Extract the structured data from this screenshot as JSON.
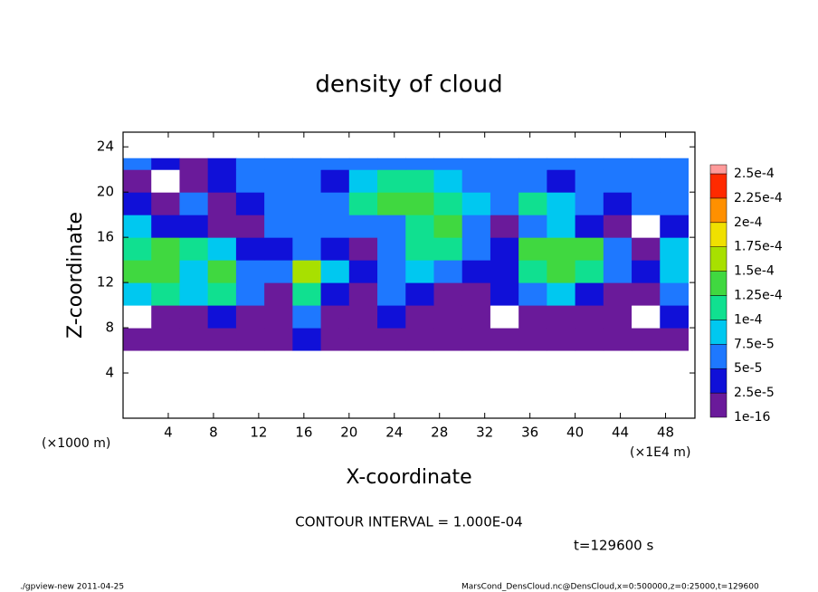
{
  "chart_data": {
    "type": "heatmap",
    "title": "density of cloud",
    "x_label": "X-coordinate",
    "y_label": "Z-coordinate",
    "x_unit": "(×1E4 m)",
    "y_unit": "(×1000 m)",
    "annotation": "CONTOUR INTERVAL = 1.000E-04",
    "time_label": "t=129600 s",
    "footer_left": "./gpview-new  2011-04-25",
    "footer_right": "MarsCond_DensCloud.nc@DensCloud,x=0:500000,z=0:25000,t=129600",
    "xlim": [
      0,
      50.6
    ],
    "ylim": [
      0,
      25.3
    ],
    "xticks": [
      4,
      8,
      12,
      16,
      20,
      24,
      28,
      32,
      36,
      40,
      44,
      48
    ],
    "yticks": [
      4,
      8,
      12,
      16,
      20,
      24
    ],
    "x": [
      0,
      2.5,
      5,
      7.5,
      10,
      12.5,
      15,
      17.5,
      20,
      22.5,
      25,
      27.5,
      30,
      32.5,
      35,
      37.5,
      40,
      42.5,
      45,
      47.5,
      50
    ],
    "y": [
      6,
      8,
      10,
      12,
      14,
      16,
      18,
      20,
      22,
      23
    ],
    "z": [
      [
        1e-05,
        1e-05,
        1e-05,
        1e-05,
        1e-05,
        1e-05,
        3e-05,
        1e-05,
        1e-05,
        1e-05,
        1e-05,
        1e-05,
        1e-05,
        1e-05,
        1e-05,
        1e-05,
        1e-05,
        1e-05,
        1e-05,
        1e-05
      ],
      [
        0,
        1e-05,
        1e-05,
        3e-05,
        1e-05,
        1e-05,
        6e-05,
        1e-05,
        1e-05,
        3e-05,
        1e-05,
        1e-05,
        1e-05,
        0,
        1e-05,
        1e-05,
        1e-05,
        1e-05,
        0,
        3e-05
      ],
      [
        8e-05,
        0.00011,
        8e-05,
        0.00011,
        6e-05,
        1e-05,
        0.00011,
        3e-05,
        1e-05,
        6e-05,
        3e-05,
        1e-05,
        1e-05,
        3e-05,
        6e-05,
        8e-05,
        3e-05,
        1e-05,
        1e-05,
        6e-05
      ],
      [
        0.00013,
        0.00013,
        8e-05,
        0.00013,
        6e-05,
        6e-05,
        0.00015,
        8e-05,
        3e-05,
        6e-05,
        8e-05,
        6e-05,
        3e-05,
        3e-05,
        0.00011,
        0.00013,
        0.00011,
        6e-05,
        3e-05,
        8e-05
      ],
      [
        0.00011,
        0.00013,
        0.00011,
        8e-05,
        3e-05,
        3e-05,
        6e-05,
        3e-05,
        1e-05,
        6e-05,
        0.00011,
        0.00011,
        6e-05,
        3e-05,
        0.00013,
        0.00013,
        0.00013,
        6e-05,
        1e-05,
        8e-05
      ],
      [
        8e-05,
        3e-05,
        3e-05,
        1e-05,
        1e-05,
        6e-05,
        6e-05,
        6e-05,
        6e-05,
        6e-05,
        0.00011,
        0.00013,
        6e-05,
        1e-05,
        6e-05,
        8e-05,
        3e-05,
        1e-05,
        0,
        3e-05
      ],
      [
        3e-05,
        1e-05,
        6e-05,
        1e-05,
        3e-05,
        6e-05,
        6e-05,
        6e-05,
        0.00011,
        0.00013,
        0.00013,
        0.00011,
        8e-05,
        6e-05,
        0.00011,
        8e-05,
        6e-05,
        3e-05,
        6e-05,
        6e-05
      ],
      [
        1e-05,
        0,
        1e-05,
        3e-05,
        6e-05,
        6e-05,
        6e-05,
        3e-05,
        8e-05,
        0.00011,
        0.00011,
        8e-05,
        6e-05,
        6e-05,
        6e-05,
        3e-05,
        6e-05,
        6e-05,
        6e-05,
        6e-05
      ],
      [
        6e-05,
        3e-05,
        1e-05,
        3e-05,
        6e-05,
        6e-05,
        6e-05,
        6e-05,
        6e-05,
        6e-05,
        6e-05,
        6e-05,
        6e-05,
        6e-05,
        6e-05,
        6e-05,
        6e-05,
        6e-05,
        6e-05,
        6e-05
      ]
    ],
    "levels": [
      {
        "value": 1e-16,
        "label": "1e-16"
      },
      {
        "value": 2.5e-05,
        "label": "2.5e-5"
      },
      {
        "value": 5e-05,
        "label": "5e-5"
      },
      {
        "value": 7.5e-05,
        "label": "7.5e-5"
      },
      {
        "value": 0.0001,
        "label": "1e-4"
      },
      {
        "value": 0.000125,
        "label": "1.25e-4"
      },
      {
        "value": 0.00015,
        "label": "1.5e-4"
      },
      {
        "value": 0.000175,
        "label": "1.75e-4"
      },
      {
        "value": 0.0002,
        "label": "2e-4"
      },
      {
        "value": 0.000225,
        "label": "2.25e-4"
      },
      {
        "value": 0.00025,
        "label": "2.5e-4"
      }
    ],
    "colors": [
      "#6a1a9a",
      "#1010d8",
      "#1e78ff",
      "#00c8f0",
      "#10e090",
      "#40d840",
      "#a8e000",
      "#f0e000",
      "#ff9000",
      "#ff2a00",
      "#ff9a9a"
    ]
  }
}
